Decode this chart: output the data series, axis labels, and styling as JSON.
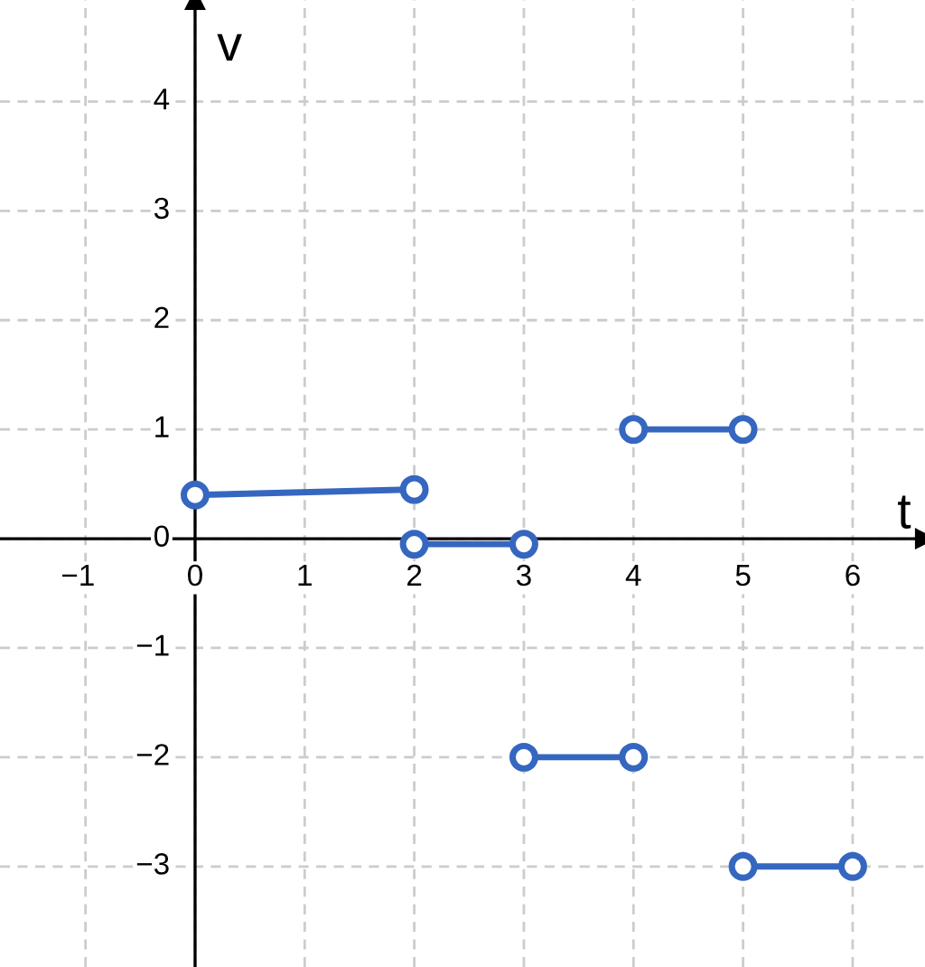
{
  "chart_data": {
    "type": "line",
    "xlabel": "t",
    "ylabel": "v",
    "series": [
      {
        "color": "#3567c0",
        "x": [
          0,
          2
        ],
        "values": [
          0.4,
          0.45
        ]
      },
      {
        "color": "#3567c0",
        "x": [
          2,
          3
        ],
        "values": [
          -0.05,
          -0.05
        ]
      },
      {
        "color": "#3567c0",
        "x": [
          3,
          4
        ],
        "values": [
          -2,
          -2
        ]
      },
      {
        "color": "#3567c0",
        "x": [
          4,
          5
        ],
        "values": [
          1,
          1
        ]
      },
      {
        "color": "#3567c0",
        "x": [
          5,
          6
        ],
        "values": [
          -3,
          -3
        ]
      }
    ],
    "xlim": [
      -1.78,
      6.66
    ],
    "ylim": [
      -3.92,
      4.93
    ],
    "xticks": [
      -1,
      0,
      1,
      2,
      3,
      4,
      5,
      6
    ],
    "yticks": [
      -3,
      -2,
      -1,
      0,
      1,
      2,
      3,
      4
    ],
    "grid": true,
    "marker": "circle",
    "line_style": "solid"
  }
}
